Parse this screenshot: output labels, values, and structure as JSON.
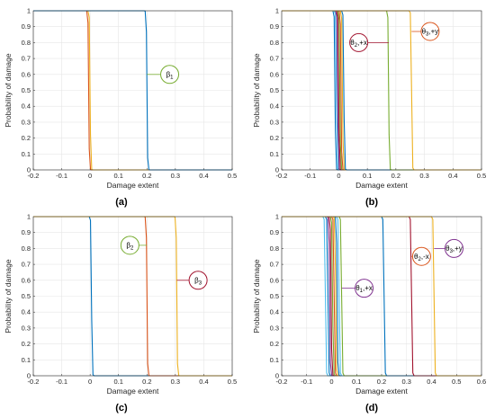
{
  "chart_data": [
    {
      "panel_label": "(a)",
      "type": "line",
      "xlabel": "Damage extent",
      "ylabel": "Probability of damage",
      "xlim": [
        -0.2,
        0.5
      ],
      "ylim": [
        0,
        1
      ],
      "xticks": [
        "-0.2",
        "-0.1",
        "0",
        "0.1",
        "0.2",
        "0.3",
        "0.4",
        "0.5"
      ],
      "yticks": [
        "0",
        "0.1",
        "0.2",
        "0.3",
        "0.4",
        "0.5",
        "0.6",
        "0.7",
        "0.8",
        "0.9",
        "1"
      ],
      "grid": true,
      "series": [
        {
          "color": "#D95319",
          "x0": -0.005,
          "w": 0.004
        },
        {
          "color": "#EDB120",
          "x0": 0.0,
          "w": 0.004
        },
        {
          "color": "#0072BD",
          "x0": 0.2,
          "w": 0.004
        }
      ],
      "annotations": [
        {
          "text": "β1",
          "main": "β",
          "sub": "1",
          "x": 0.28,
          "y": 0.6,
          "color": "#77AC30",
          "line_to_x": 0.2
        }
      ]
    },
    {
      "panel_label": "(b)",
      "type": "line",
      "xlabel": "Damage extent",
      "ylabel": "Probability of damage",
      "xlim": [
        -0.2,
        0.5
      ],
      "ylim": [
        0,
        1
      ],
      "xticks": [
        "-0.2",
        "-0.1",
        "0",
        "0.1",
        "0.2",
        "0.3",
        "0.4",
        "0.5"
      ],
      "yticks": [
        "0",
        "0.1",
        "0.2",
        "0.3",
        "0.4",
        "0.5",
        "0.6",
        "0.7",
        "0.8",
        "0.9",
        "1"
      ],
      "grid": true,
      "series": [
        {
          "color": "#0072BD",
          "x0": -0.013,
          "w": 0.004
        },
        {
          "color": "#4DBEEE",
          "x0": -0.008,
          "w": 0.004
        },
        {
          "color": "#7E2F8E",
          "x0": -0.004,
          "w": 0.004
        },
        {
          "color": "#A2142F",
          "x0": 0.0,
          "w": 0.004
        },
        {
          "color": "#77AC30",
          "x0": 0.004,
          "w": 0.004
        },
        {
          "color": "#D95319",
          "x0": 0.008,
          "w": 0.004
        },
        {
          "color": "#EDB120",
          "x0": 0.013,
          "w": 0.004
        },
        {
          "color": "#0072BD",
          "x0": 0.018,
          "w": 0.004
        },
        {
          "color": "#77AC30",
          "x0": 0.175,
          "w": 0.004
        },
        {
          "color": "#EDB120",
          "x0": 0.255,
          "w": 0.004
        }
      ],
      "annotations": [
        {
          "text": "θ2,+x",
          "main": "θ",
          "sub": "2",
          "suffix": ",+x",
          "x": 0.07,
          "y": 0.8,
          "color": "#A2142F",
          "line_to_x": 0.175
        },
        {
          "text": "θ3,+y",
          "main": "θ",
          "sub": "3",
          "suffix": ",+y",
          "x": 0.32,
          "y": 0.87,
          "color": "#D95319",
          "line_to_x": 0.255
        }
      ]
    },
    {
      "panel_label": "(c)",
      "type": "line",
      "xlabel": "Damage extent",
      "ylabel": "Probability of damage",
      "xlim": [
        -0.2,
        0.5
      ],
      "ylim": [
        0,
        1
      ],
      "xticks": [
        "-0.2",
        "-0.1",
        "0",
        "0.1",
        "0.2",
        "0.3",
        "0.4",
        "0.5"
      ],
      "yticks": [
        "0",
        "0.1",
        "0.2",
        "0.3",
        "0.4",
        "0.5",
        "0.6",
        "0.7",
        "0.8",
        "0.9",
        "1"
      ],
      "grid": true,
      "series": [
        {
          "color": "#0072BD",
          "x0": 0.005,
          "w": 0.004
        },
        {
          "color": "#D95319",
          "x0": 0.2,
          "w": 0.004
        },
        {
          "color": "#EDB120",
          "x0": 0.305,
          "w": 0.004
        }
      ],
      "annotations": [
        {
          "text": "β2",
          "main": "β",
          "sub": "2",
          "x": 0.14,
          "y": 0.82,
          "color": "#77AC30",
          "line_to_x": 0.2
        },
        {
          "text": "β3",
          "main": "β",
          "sub": "3",
          "x": 0.38,
          "y": 0.6,
          "color": "#A2142F",
          "line_to_x": 0.305
        }
      ]
    },
    {
      "panel_label": "(d)",
      "type": "line",
      "xlabel": "Damage extent",
      "ylabel": "Probability of damage",
      "xlim": [
        -0.2,
        0.6
      ],
      "ylim": [
        0,
        1
      ],
      "xticks": [
        "-0.2",
        "-0.1",
        "0",
        "0.1",
        "0.2",
        "0.3",
        "0.4",
        "0.5",
        "0.6"
      ],
      "yticks": [
        "0",
        "0.1",
        "0.2",
        "0.3",
        "0.4",
        "0.5",
        "0.6",
        "0.7",
        "0.8",
        "0.9",
        "1"
      ],
      "grid": true,
      "series": [
        {
          "color": "#4DBEEE",
          "x0": -0.025,
          "w": 0.005
        },
        {
          "color": "#0072BD",
          "x0": -0.015,
          "w": 0.005
        },
        {
          "color": "#7E2F8E",
          "x0": -0.008,
          "w": 0.005
        },
        {
          "color": "#A2142F",
          "x0": -0.002,
          "w": 0.005
        },
        {
          "color": "#77AC30",
          "x0": 0.004,
          "w": 0.005
        },
        {
          "color": "#D95319",
          "x0": 0.01,
          "w": 0.005
        },
        {
          "color": "#EDB120",
          "x0": 0.016,
          "w": 0.005
        },
        {
          "color": "#0072BD",
          "x0": 0.022,
          "w": 0.005
        },
        {
          "color": "#4DBEEE",
          "x0": 0.03,
          "w": 0.005
        },
        {
          "color": "#77AC30",
          "x0": 0.04,
          "w": 0.005
        },
        {
          "color": "#0072BD",
          "x0": 0.21,
          "w": 0.005
        },
        {
          "color": "#A2142F",
          "x0": 0.32,
          "w": 0.005
        },
        {
          "color": "#EDB120",
          "x0": 0.41,
          "w": 0.005
        }
      ],
      "annotations": [
        {
          "text": "θ1,+x",
          "main": "θ",
          "sub": "1",
          "suffix": ",+x",
          "x": 0.13,
          "y": 0.55,
          "color": "#7E2F8E",
          "line_to_x": 0.04
        },
        {
          "text": "θ2,-x",
          "main": "θ",
          "sub": "2",
          "suffix": ",-x",
          "x": 0.36,
          "y": 0.75,
          "color": "#D95319",
          "line_to_x": 0.32
        },
        {
          "text": "θ3,+y",
          "main": "θ",
          "sub": "3",
          "suffix": ",+y",
          "x": 0.49,
          "y": 0.8,
          "color": "#7E2F8E",
          "line_to_x": 0.41
        }
      ]
    }
  ]
}
